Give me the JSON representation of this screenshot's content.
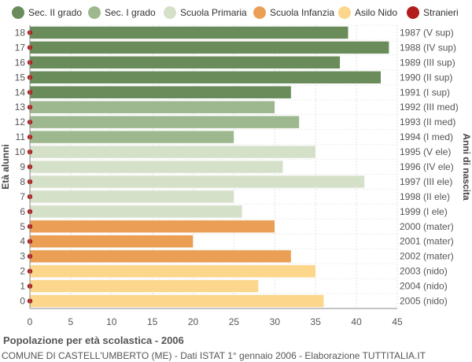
{
  "legend": [
    {
      "label": "Sec. II grado",
      "color": "#6a8c5a"
    },
    {
      "label": "Sec. I grado",
      "color": "#9db88e"
    },
    {
      "label": "Scuola Primaria",
      "color": "#d5e0c8"
    },
    {
      "label": "Scuola Infanzia",
      "color": "#eb9f55"
    },
    {
      "label": "Asilo Nido",
      "color": "#fcd68b"
    },
    {
      "label": "Stranieri",
      "color": "#b21c1c"
    }
  ],
  "footer": {
    "title": "Popolazione per età scolastica - 2006",
    "subtitle": "COMUNE DI CASTELL'UMBERTO (ME) - Dati ISTAT 1° gennaio 2006 - Elaborazione TUTTITALIA.IT"
  },
  "chart_data": {
    "type": "bar",
    "orientation": "horizontal",
    "ylabel": "Età alunni",
    "ylabel_right": "Anni di nascita",
    "xlim": [
      0,
      45
    ],
    "xticks": [
      0,
      5,
      10,
      15,
      20,
      25,
      30,
      35,
      40,
      45
    ],
    "grid": true,
    "legend_position": "top",
    "rows": [
      {
        "age": "18",
        "birth": "1987 (V sup)",
        "value": 39,
        "category": "Sec. II grado"
      },
      {
        "age": "17",
        "birth": "1988 (IV sup)",
        "value": 44,
        "category": "Sec. II grado"
      },
      {
        "age": "16",
        "birth": "1989 (III sup)",
        "value": 38,
        "category": "Sec. II grado"
      },
      {
        "age": "15",
        "birth": "1990 (II sup)",
        "value": 43,
        "category": "Sec. II grado"
      },
      {
        "age": "14",
        "birth": "1991 (I sup)",
        "value": 32,
        "category": "Sec. II grado"
      },
      {
        "age": "13",
        "birth": "1992 (III med)",
        "value": 30,
        "category": "Sec. I grado"
      },
      {
        "age": "12",
        "birth": "1993 (II med)",
        "value": 33,
        "category": "Sec. I grado"
      },
      {
        "age": "11",
        "birth": "1994 (I med)",
        "value": 25,
        "category": "Sec. I grado"
      },
      {
        "age": "10",
        "birth": "1995 (V ele)",
        "value": 35,
        "category": "Scuola Primaria"
      },
      {
        "age": "9",
        "birth": "1996 (IV ele)",
        "value": 31,
        "category": "Scuola Primaria"
      },
      {
        "age": "8",
        "birth": "1997 (III ele)",
        "value": 41,
        "category": "Scuola Primaria"
      },
      {
        "age": "7",
        "birth": "1998 (II ele)",
        "value": 25,
        "category": "Scuola Primaria"
      },
      {
        "age": "6",
        "birth": "1999 (I ele)",
        "value": 26,
        "category": "Scuola Primaria"
      },
      {
        "age": "5",
        "birth": "2000 (mater)",
        "value": 30,
        "category": "Scuola Infanzia"
      },
      {
        "age": "4",
        "birth": "2001 (mater)",
        "value": 20,
        "category": "Scuola Infanzia"
      },
      {
        "age": "3",
        "birth": "2002 (mater)",
        "value": 32,
        "category": "Scuola Infanzia"
      },
      {
        "age": "2",
        "birth": "2003 (nido)",
        "value": 35,
        "category": "Asilo Nido"
      },
      {
        "age": "1",
        "birth": "2004 (nido)",
        "value": 28,
        "category": "Asilo Nido"
      },
      {
        "age": "0",
        "birth": "2005 (nido)",
        "value": 36,
        "category": "Asilo Nido"
      }
    ],
    "stranieri": [
      0,
      0,
      0,
      0,
      0,
      0,
      0,
      0,
      0,
      0,
      0,
      0,
      0,
      0,
      0,
      0,
      0,
      0,
      0
    ]
  }
}
